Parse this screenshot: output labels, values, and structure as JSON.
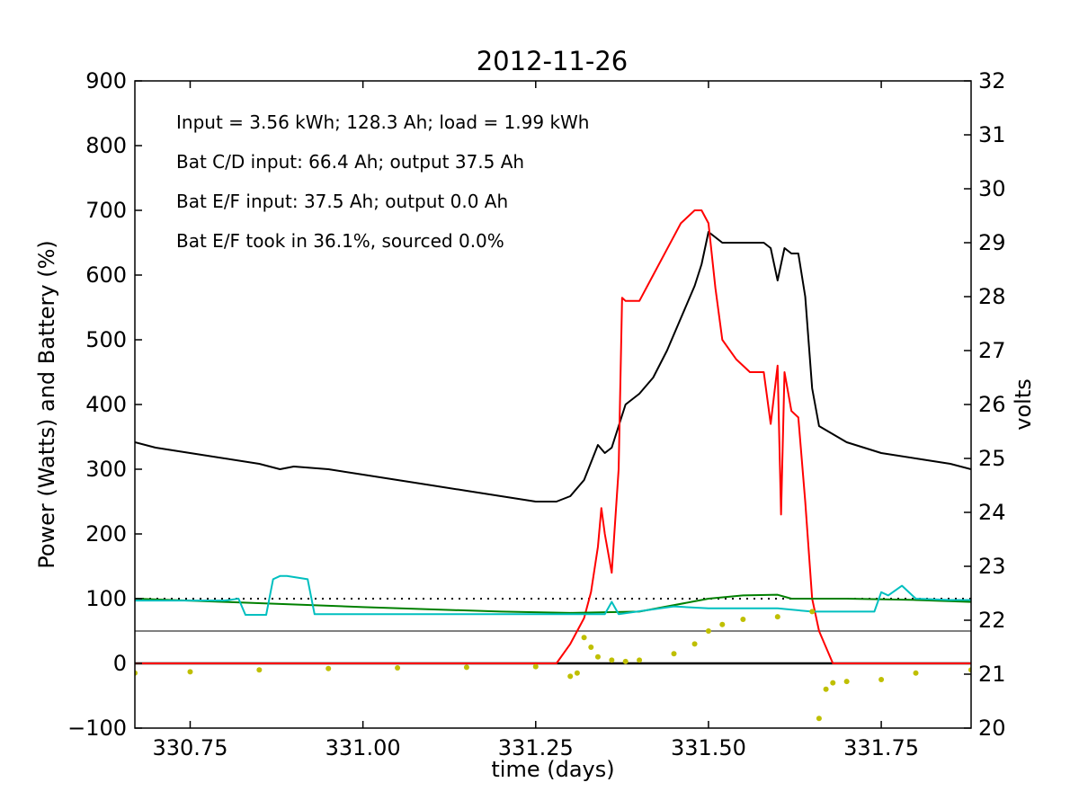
{
  "chart_data": {
    "type": "line",
    "title": "2012-11-26",
    "xlabel": "time (days)",
    "ylabel_left": "Power (Watts) and Battery (%)",
    "ylabel_right": "volts",
    "xlim": [
      330.67,
      331.88
    ],
    "ylim_left": [
      -100,
      900
    ],
    "ylim_right": [
      20,
      32
    ],
    "x_ticks": [
      330.75,
      331.0,
      331.25,
      331.5,
      331.75
    ],
    "x_tick_labels": [
      "330.75",
      "331.00",
      "331.25",
      "331.50",
      "331.75"
    ],
    "y_ticks_left": [
      -100,
      0,
      100,
      200,
      300,
      400,
      500,
      600,
      700,
      800,
      900
    ],
    "y_tick_labels_left": [
      "−100",
      "0",
      "100",
      "200",
      "300",
      "400",
      "500",
      "600",
      "700",
      "800",
      "900"
    ],
    "y_ticks_right": [
      20,
      21,
      22,
      23,
      24,
      25,
      26,
      27,
      28,
      29,
      30,
      31,
      32
    ],
    "y_tick_labels_right": [
      "20",
      "21",
      "22",
      "23",
      "24",
      "25",
      "26",
      "27",
      "28",
      "29",
      "30",
      "31",
      "32"
    ],
    "grid": false,
    "annotations": [
      "Input = 3.56 kWh; 128.3 Ah; load = 1.99 kWh",
      "Bat C/D input: 66.4 Ah; output 37.5 Ah",
      "Bat E/F input: 37.5 Ah; output 0.0 Ah",
      "Bat E/F took in 36.1%, sourced 0.0%"
    ],
    "reference_lines": [
      {
        "y": 100,
        "style": "dotted",
        "color": "#000000"
      },
      {
        "y": 50,
        "style": "solid-thin",
        "color": "#000000"
      },
      {
        "y": 0,
        "style": "solid-thick",
        "color": "#000000"
      }
    ],
    "series": [
      {
        "axis": "right",
        "color": "#000000",
        "style": "line",
        "x": [
          330.67,
          330.7,
          330.75,
          330.8,
          330.85,
          330.88,
          330.9,
          330.95,
          331.0,
          331.05,
          331.1,
          331.15,
          331.2,
          331.25,
          331.28,
          331.3,
          331.32,
          331.34,
          331.35,
          331.36,
          331.37,
          331.38,
          331.39,
          331.4,
          331.42,
          331.44,
          331.46,
          331.48,
          331.49,
          331.5,
          331.52,
          331.55,
          331.58,
          331.59,
          331.6,
          331.61,
          331.62,
          331.63,
          331.64,
          331.65,
          331.66,
          331.7,
          331.75,
          331.8,
          331.85,
          331.88
        ],
        "y": [
          25.3,
          25.2,
          25.1,
          25.0,
          24.9,
          24.8,
          24.85,
          24.8,
          24.7,
          24.6,
          24.5,
          24.4,
          24.3,
          24.2,
          24.2,
          24.3,
          24.6,
          25.25,
          25.1,
          25.2,
          25.6,
          26.0,
          26.1,
          26.2,
          26.5,
          27.0,
          27.6,
          28.2,
          28.6,
          29.2,
          29.0,
          29.0,
          29.0,
          28.9,
          28.3,
          28.9,
          28.8,
          28.8,
          28.0,
          26.3,
          25.6,
          25.3,
          25.1,
          25.0,
          24.9,
          24.8
        ]
      },
      {
        "axis": "left",
        "color": "#ff0000",
        "style": "line",
        "x": [
          330.67,
          331.28,
          331.3,
          331.32,
          331.33,
          331.34,
          331.345,
          331.35,
          331.36,
          331.37,
          331.375,
          331.38,
          331.4,
          331.42,
          331.44,
          331.46,
          331.48,
          331.49,
          331.5,
          331.51,
          331.52,
          331.54,
          331.56,
          331.58,
          331.59,
          331.6,
          331.605,
          331.61,
          331.62,
          331.63,
          331.64,
          331.65,
          331.66,
          331.68,
          331.88
        ],
        "y": [
          0,
          0,
          30,
          70,
          110,
          180,
          240,
          200,
          140,
          300,
          565,
          560,
          560,
          600,
          640,
          680,
          700,
          700,
          680,
          580,
          500,
          470,
          450,
          450,
          370,
          460,
          230,
          450,
          390,
          380,
          250,
          100,
          50,
          0,
          0
        ]
      },
      {
        "axis": "left",
        "color": "#008000",
        "style": "line",
        "x": [
          330.67,
          330.8,
          331.0,
          331.2,
          331.3,
          331.4,
          331.5,
          331.55,
          331.6,
          331.62,
          331.7,
          331.8,
          331.88
        ],
        "y": [
          100,
          95,
          87,
          80,
          78,
          80,
          100,
          105,
          106,
          100,
          100,
          98,
          95
        ]
      },
      {
        "axis": "left",
        "color": "#00bfbf",
        "style": "line",
        "x": [
          330.67,
          330.8,
          330.82,
          330.83,
          330.86,
          330.87,
          330.88,
          330.89,
          330.92,
          330.93,
          331.0,
          331.2,
          331.35,
          331.36,
          331.37,
          331.45,
          331.5,
          331.55,
          331.6,
          331.65,
          331.7,
          331.74,
          331.75,
          331.76,
          331.78,
          331.8,
          331.85,
          331.88
        ],
        "y": [
          97,
          97,
          100,
          75,
          75,
          130,
          135,
          135,
          130,
          76,
          76,
          76,
          76,
          95,
          76,
          88,
          85,
          85,
          85,
          80,
          80,
          80,
          110,
          105,
          120,
          100,
          98,
          98
        ]
      },
      {
        "axis": "left",
        "color": "#bfbf00",
        "style": "dots",
        "x": [
          330.67,
          330.75,
          330.85,
          330.95,
          331.05,
          331.15,
          331.25,
          331.3,
          331.31,
          331.32,
          331.33,
          331.34,
          331.36,
          331.38,
          331.4,
          331.45,
          331.48,
          331.5,
          331.52,
          331.55,
          331.6,
          331.65,
          331.66,
          331.67,
          331.68,
          331.7,
          331.75,
          331.8,
          331.88
        ],
        "y": [
          -15,
          -13,
          -10,
          -8,
          -7,
          -6,
          -5,
          -20,
          -15,
          40,
          25,
          10,
          5,
          3,
          5,
          15,
          30,
          50,
          60,
          68,
          72,
          80,
          -85,
          -40,
          -30,
          -28,
          -25,
          -15,
          -10
        ]
      }
    ]
  }
}
